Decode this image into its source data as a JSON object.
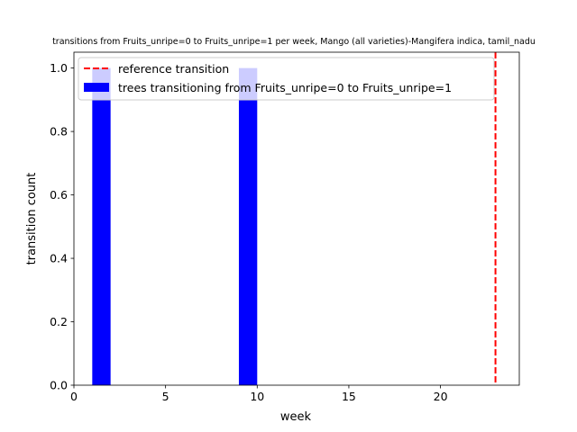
{
  "chart_data": {
    "type": "bar",
    "title": "transitions from Fruits_unripe=0 to Fruits_unripe=1 per week, Mango (all varieties)-Mangifera indica, tamil_nadu",
    "xlabel": "week",
    "ylabel": "transition count",
    "xlim": [
      0,
      24.3
    ],
    "ylim": [
      0,
      1.05
    ],
    "xticks": [
      "0",
      "5",
      "10",
      "15",
      "20"
    ],
    "xtick_values": [
      0,
      5,
      10,
      15,
      20
    ],
    "yticks": [
      "0.0",
      "0.2",
      "0.4",
      "0.6",
      "0.8",
      "1.0"
    ],
    "ytick_values": [
      0,
      0.2,
      0.4,
      0.6,
      0.8,
      1.0
    ],
    "series": [
      {
        "name": "trees transitioning from Fruits_unripe=0 to Fruits_unripe=1",
        "color": "#0000ff",
        "bar_width": 1,
        "bars": [
          {
            "x_start": 1,
            "value": 1
          },
          {
            "x_start": 9,
            "value": 1
          }
        ]
      }
    ],
    "reference_line": {
      "name": "reference transition",
      "x": 23,
      "color": "#ff0000",
      "style": "dashed"
    },
    "legend_position": "top-left",
    "grid": false
  }
}
